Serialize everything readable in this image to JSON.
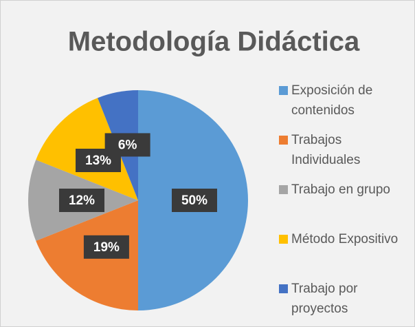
{
  "chart_data": {
    "type": "pie",
    "title": "Metodología Didáctica",
    "categories": [
      "Exposición de contenidos",
      "Trabajos Individuales",
      "Trabajo en grupo",
      "Método Expositivo",
      "Trabajo por proyectos"
    ],
    "values": [
      50,
      19,
      12,
      13,
      6
    ],
    "value_labels": [
      "50%",
      "19%",
      "12%",
      "13%",
      "6%"
    ],
    "colors": [
      "#5b9bd5",
      "#ed7d31",
      "#a5a5a5",
      "#ffc000",
      "#4472c4"
    ],
    "legend": "right"
  }
}
